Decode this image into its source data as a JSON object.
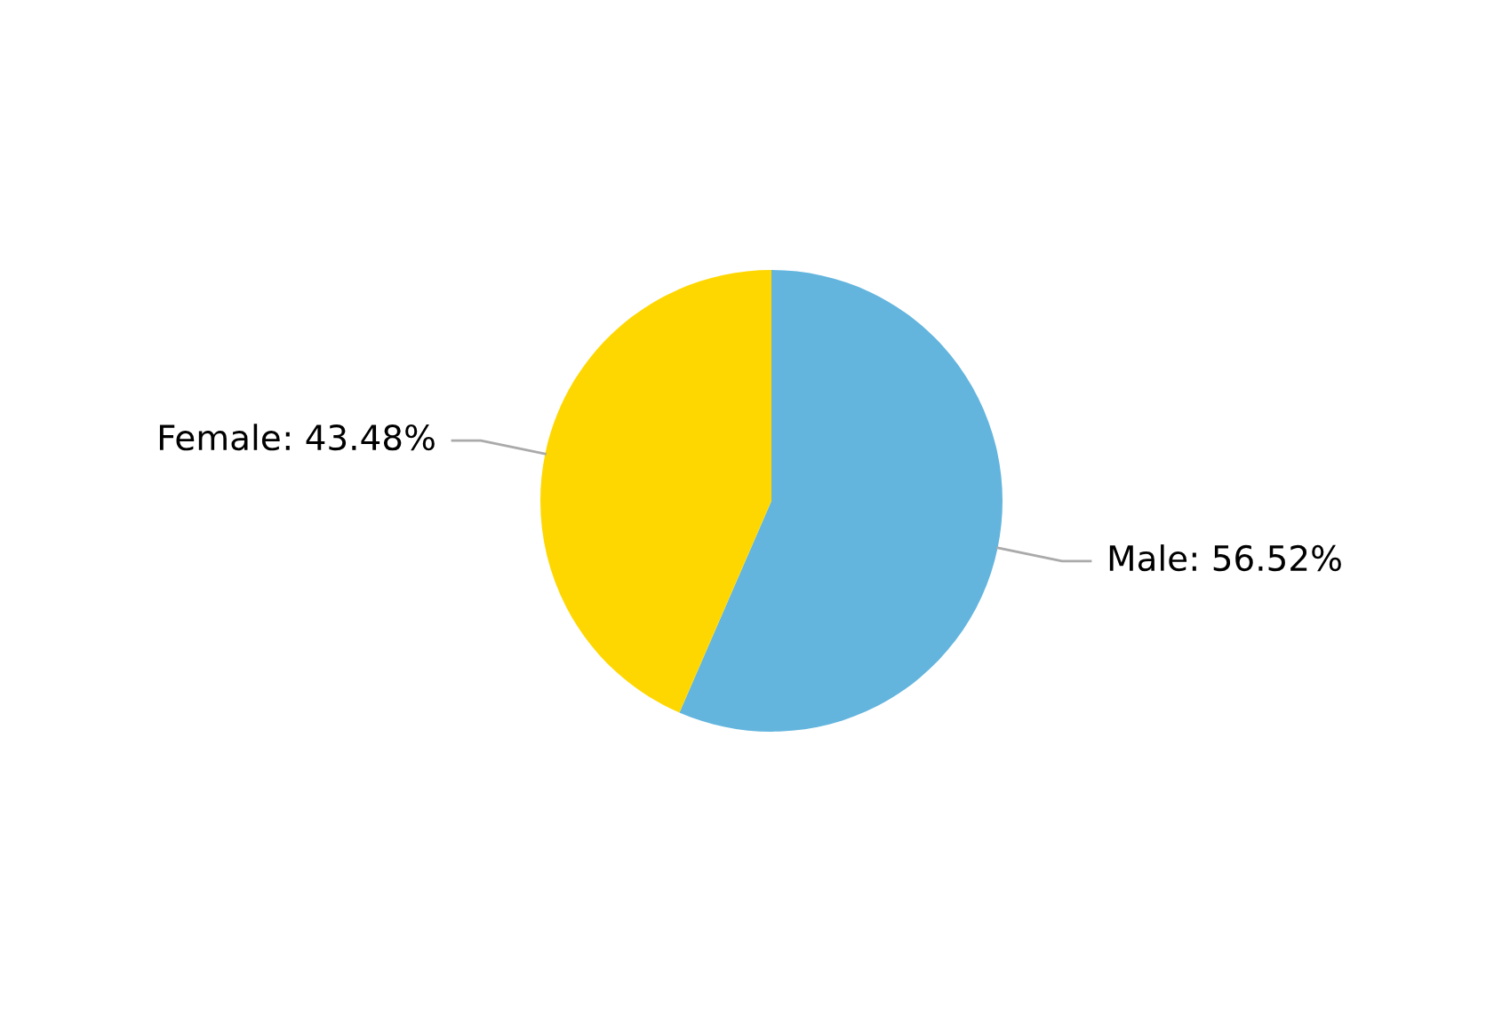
{
  "chart_data": {
    "type": "pie",
    "categories": [
      "Male",
      "Female"
    ],
    "values": [
      56.52,
      43.48
    ],
    "colors": [
      "#63b5de",
      "#ffd700"
    ],
    "value_labels": [
      ": 56.52%",
      ": 43.48%"
    ],
    "legend": false
  }
}
